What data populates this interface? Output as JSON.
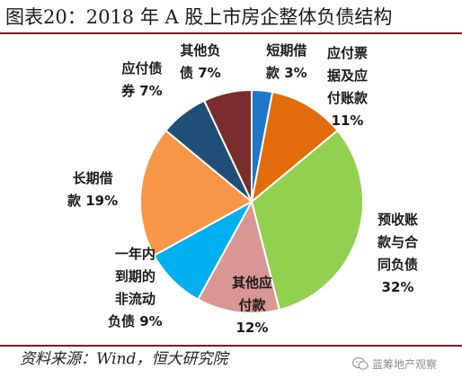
{
  "title": "图表20：2018 年 A 股上市房企整体负债结构",
  "source": "资料来源：Wind，恒大研究院",
  "watermark": "蓝筹地产观察",
  "chart_data": {
    "type": "pie",
    "title": "图表20：2018 年 A 股上市房企整体负债结构",
    "slices": [
      {
        "name": "短期借款",
        "display": "短期借\n款 3%",
        "value": 3,
        "color": "#1F77C8"
      },
      {
        "name": "应付票据及应付账款",
        "display": "应付票\n据及应\n付账款\n11%",
        "value": 11,
        "color": "#E36C0A"
      },
      {
        "name": "预收账款与合同负债",
        "display": "预收账\n款与合\n同负债\n32%",
        "value": 32,
        "color": "#92D050"
      },
      {
        "name": "其他应付款",
        "display": "其他应\n付款\n12%",
        "value": 12,
        "color": "#DA9694"
      },
      {
        "name": "一年内到期的非流动负债",
        "display": "一年内\n到期的\n非流动\n负债 9%",
        "value": 9,
        "color": "#00B0F0"
      },
      {
        "name": "长期借款",
        "display": "长期借\n款 19%",
        "value": 19,
        "color": "#F79646"
      },
      {
        "name": "应付债券",
        "display": "应付债\n券 7%",
        "value": 7,
        "color": "#1F4E79"
      },
      {
        "name": "其他负债",
        "display": "其他负\n债 7%",
        "value": 7,
        "color": "#7B2C2C"
      }
    ]
  }
}
